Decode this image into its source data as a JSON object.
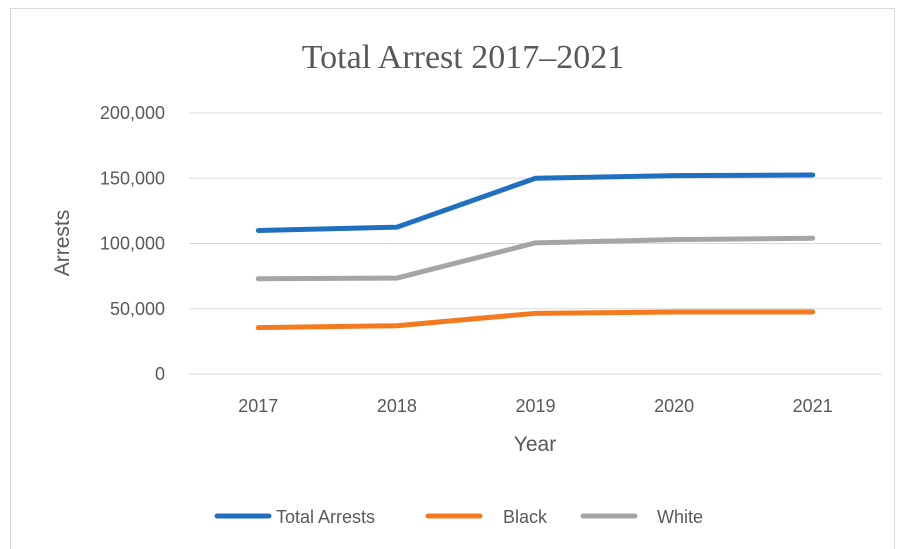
{
  "chart_data": {
    "type": "line",
    "title": "Total Arrest 2017–2021",
    "xlabel": "Year",
    "ylabel": "Arrests",
    "x": [
      "2017",
      "2018",
      "2019",
      "2020",
      "2021"
    ],
    "ylim": [
      0,
      200000
    ],
    "yticks": [
      0,
      50000,
      100000,
      150000,
      200000
    ],
    "ytick_labels": [
      "0",
      "50,000",
      "100,000",
      "150,000",
      "200,000"
    ],
    "grid": true,
    "legend_position": "bottom",
    "series": [
      {
        "name": "Total Arrests",
        "color": "#1f70c1",
        "values": [
          110000,
          112500,
          150000,
          152000,
          152500
        ]
      },
      {
        "name": "Black",
        "color": "#f47a20",
        "values": [
          35500,
          37000,
          46500,
          47500,
          47500
        ]
      },
      {
        "name": "White",
        "color": "#a5a5a5",
        "values": [
          73000,
          73500,
          100500,
          103000,
          104000
        ]
      }
    ]
  }
}
